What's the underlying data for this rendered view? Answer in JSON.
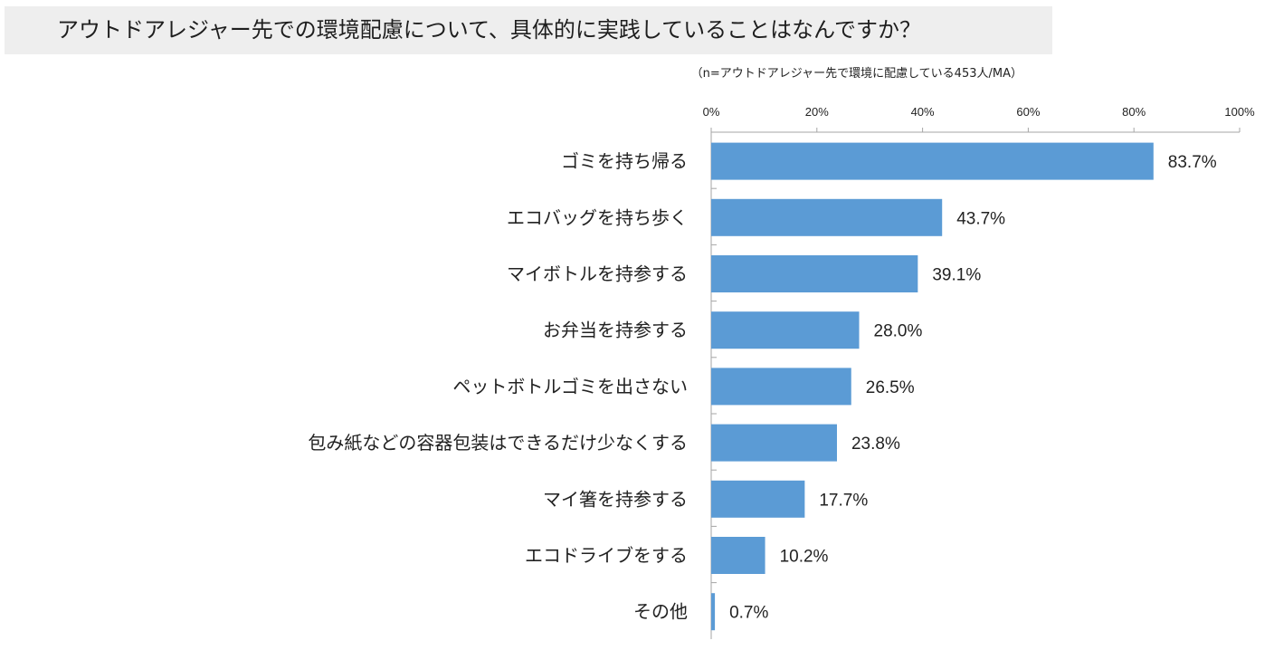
{
  "header": {
    "title": "アウトドアレジャー先での環境配慮について、具体的に実践していることはなんですか？",
    "sample_note": "（n=アウトドアレジャー先で環境に配慮している453人/MA）"
  },
  "colors": {
    "bar": "#5b9bd5",
    "axis": "#a6a6a6",
    "title_band": "#eeeeee"
  },
  "chart_data": {
    "type": "bar",
    "orientation": "horizontal",
    "categories": [
      "ゴミを持ち帰る",
      "エコバッグを持ち歩く",
      "マイボトルを持参する",
      "お弁当を持参する",
      "ペットボトルゴミを出さない",
      "包み紙などの容器包装はできるだけ少なくする",
      "マイ箸を持参する",
      "エコドライブをする",
      "その他"
    ],
    "values": [
      83.7,
      43.7,
      39.1,
      28.0,
      26.5,
      23.8,
      17.7,
      10.2,
      0.7
    ],
    "value_labels": [
      "83.7%",
      "43.7%",
      "39.1%",
      "28.0%",
      "26.5%",
      "23.8%",
      "17.7%",
      "10.2%",
      "0.7%"
    ],
    "xlim": [
      0,
      100
    ],
    "x_ticks": [
      0,
      20,
      40,
      60,
      80,
      100
    ],
    "x_tick_labels": [
      "0%",
      "20%",
      "40%",
      "60%",
      "80%",
      "100%"
    ],
    "x_axis_position": "top",
    "grid": false,
    "legend": "none"
  }
}
